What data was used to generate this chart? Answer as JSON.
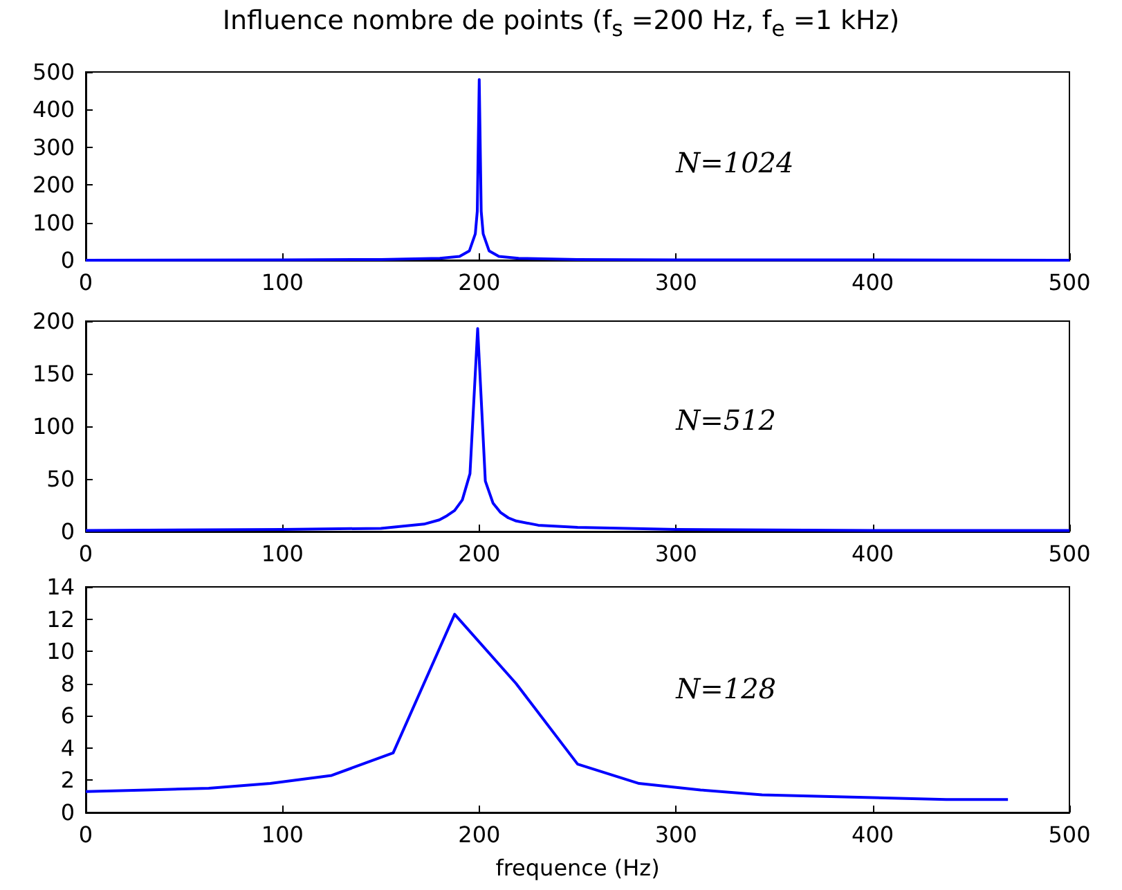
{
  "chart_data": [
    {
      "type": "line",
      "title": "Influence nombre de points (f$_{s}$ =200 Hz, f$_{e}$ =1 kHz)",
      "annotations": [
        "N=1024"
      ],
      "x": [
        0,
        100,
        150,
        180,
        190,
        195,
        198,
        199,
        200,
        201,
        202,
        205,
        210,
        220,
        250,
        300,
        400,
        500
      ],
      "series": [
        {
          "color": "#0000ff",
          "values": [
            0,
            1,
            2,
            5,
            10,
            25,
            70,
            130,
            480,
            130,
            70,
            25,
            10,
            5,
            2,
            1,
            1,
            0
          ]
        }
      ],
      "xlim": [
        0,
        500
      ],
      "xticks": [
        0,
        100,
        200,
        300,
        400,
        500
      ],
      "ylim": [
        0,
        500
      ],
      "yticks": [
        0,
        100,
        200,
        300,
        400,
        500
      ],
      "grid": false,
      "marker": "none",
      "line_style": "solid"
    },
    {
      "type": "line",
      "annotations": [
        "N=512"
      ],
      "x": [
        0,
        100,
        150,
        171.9,
        179.7,
        183.6,
        187.5,
        191.4,
        195.3,
        199.2,
        203.1,
        207,
        210.9,
        214.8,
        218.8,
        230,
        250,
        300,
        400,
        500
      ],
      "series": [
        {
          "color": "#0000ff",
          "values": [
            1,
            2,
            3,
            7,
            11,
            15,
            20,
            30,
            55,
            193,
            48,
            27,
            18,
            13,
            10,
            6,
            4,
            2,
            1,
            1
          ]
        }
      ],
      "xlim": [
        0,
        500
      ],
      "xticks": [
        0,
        100,
        200,
        300,
        400,
        500
      ],
      "ylim": [
        0,
        200
      ],
      "yticks": [
        0,
        50,
        100,
        150,
        200
      ],
      "grid": false,
      "marker": "none",
      "line_style": "solid"
    },
    {
      "type": "line",
      "xlabel": "frequence (Hz)",
      "annotations": [
        "N=128"
      ],
      "x": [
        0,
        31.25,
        62.5,
        93.75,
        125,
        156.25,
        187.5,
        218.75,
        250,
        281.25,
        312.5,
        343.75,
        375,
        406.25,
        437.5,
        468.75
      ],
      "series": [
        {
          "color": "#0000ff",
          "values": [
            1.3,
            1.4,
            1.5,
            1.8,
            2.3,
            3.7,
            12.3,
            8,
            3,
            1.8,
            1.4,
            1.1,
            1,
            0.9,
            0.8,
            0.8
          ]
        }
      ],
      "xlim": [
        0,
        500
      ],
      "xticks": [
        0,
        100,
        200,
        300,
        400,
        500
      ],
      "ylim": [
        0,
        14
      ],
      "yticks": [
        0,
        2,
        4,
        6,
        8,
        10,
        12,
        14
      ],
      "grid": false,
      "marker": "none",
      "line_style": "solid"
    }
  ]
}
